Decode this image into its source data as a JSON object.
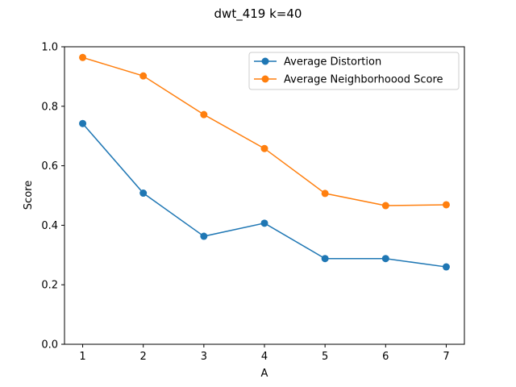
{
  "chart_data": {
    "type": "line",
    "title": "dwt_419 k=40",
    "xlabel": "A",
    "ylabel": "Score",
    "x": [
      1,
      2,
      3,
      4,
      5,
      6,
      7
    ],
    "xlim": [
      0.7,
      7.3
    ],
    "ylim": [
      0,
      1.0
    ],
    "yticks": [
      "0.0",
      "0.2",
      "0.4",
      "0.6",
      "0.8",
      "1.0"
    ],
    "xticks": [
      "1",
      "2",
      "3",
      "4",
      "5",
      "6",
      "7"
    ],
    "grid": false,
    "legend_position": "top-right",
    "series": [
      {
        "name": "Average Distortion",
        "color": "#1f77b4",
        "values": [
          0.742,
          0.508,
          0.363,
          0.407,
          0.288,
          0.288,
          0.26
        ]
      },
      {
        "name": "Average Neighborhoood Score",
        "color": "#ff7f0e",
        "values": [
          0.964,
          0.902,
          0.772,
          0.658,
          0.507,
          0.466,
          0.469
        ]
      }
    ]
  }
}
